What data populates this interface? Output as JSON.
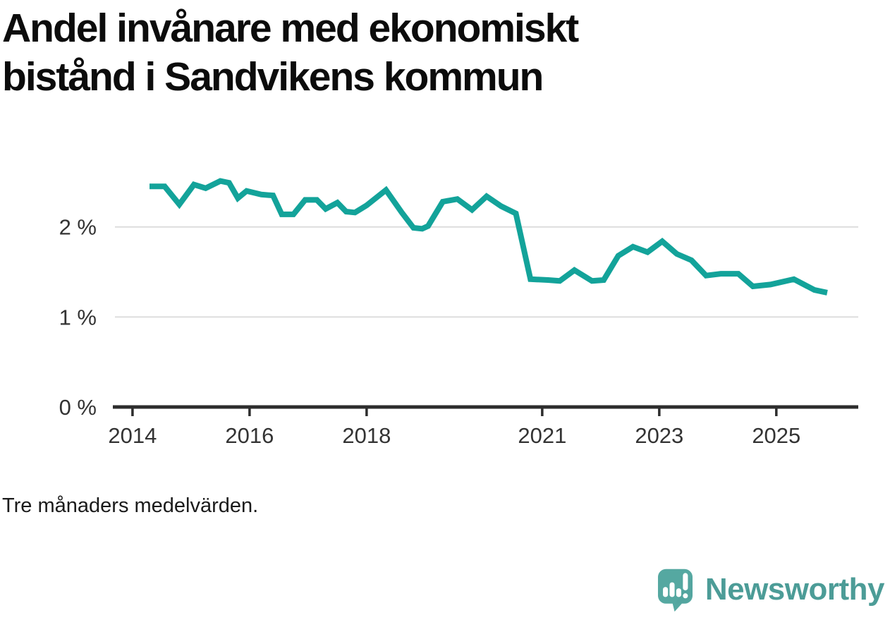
{
  "page": {
    "background": "#ffffff"
  },
  "title": {
    "lines": [
      "Andel invånare med ekonomiskt",
      "bistånd i Sandvikens kommun"
    ]
  },
  "footnote": "Tre månaders medelvärden.",
  "branding": {
    "name": "Newsworthy",
    "icon": "newsworthy-speech-bubble-barchart-icon",
    "icon_color": "#55a8a1",
    "icon_shade_color": "#479690",
    "icon_glyph_color": "#ffffff",
    "text_color": "#4c9c97"
  },
  "chart_data": {
    "type": "line",
    "title": "Andel invånare med ekonomiskt bistånd i Sandvikens kommun",
    "subtitle_note": "Tre månaders medelvärden.",
    "xlabel": "",
    "ylabel": "",
    "unit": "%",
    "grid": true,
    "legend": "none",
    "xlim": [
      2013.7,
      2026.4
    ],
    "ylim": [
      0,
      2.75
    ],
    "x_ticks": [
      {
        "value": 2014,
        "label": "2014"
      },
      {
        "value": 2016,
        "label": "2016"
      },
      {
        "value": 2018,
        "label": "2018"
      },
      {
        "value": 2021,
        "label": "2021"
      },
      {
        "value": 2023,
        "label": "2023"
      },
      {
        "value": 2025,
        "label": "2025"
      }
    ],
    "y_ticks": [
      {
        "value": 0,
        "label": "0 %"
      },
      {
        "value": 1,
        "label": "1 %"
      },
      {
        "value": 2,
        "label": "2 %"
      }
    ],
    "line_color": "#13a39a",
    "grid_color": "#dddddd",
    "axis_color": "#2d2d2d",
    "tick_text_color": "#333333",
    "series": [
      {
        "name": "Andel invånare med ekonomiskt bistånd, Sandvikens kommun",
        "points": [
          [
            2014.29,
            2.45
          ],
          [
            2014.55,
            2.45
          ],
          [
            2014.8,
            2.25
          ],
          [
            2015.05,
            2.47
          ],
          [
            2015.25,
            2.43
          ],
          [
            2015.5,
            2.51
          ],
          [
            2015.65,
            2.49
          ],
          [
            2015.8,
            2.32
          ],
          [
            2015.95,
            2.4
          ],
          [
            2016.2,
            2.36
          ],
          [
            2016.4,
            2.35
          ],
          [
            2016.55,
            2.14
          ],
          [
            2016.75,
            2.14
          ],
          [
            2016.95,
            2.3
          ],
          [
            2017.15,
            2.3
          ],
          [
            2017.3,
            2.2
          ],
          [
            2017.5,
            2.27
          ],
          [
            2017.65,
            2.17
          ],
          [
            2017.8,
            2.16
          ],
          [
            2018.0,
            2.24
          ],
          [
            2018.33,
            2.41
          ],
          [
            2018.6,
            2.16
          ],
          [
            2018.8,
            1.99
          ],
          [
            2018.95,
            1.98
          ],
          [
            2019.05,
            2.01
          ],
          [
            2019.3,
            2.28
          ],
          [
            2019.55,
            2.31
          ],
          [
            2019.8,
            2.19
          ],
          [
            2020.05,
            2.34
          ],
          [
            2020.3,
            2.23
          ],
          [
            2020.55,
            2.15
          ],
          [
            2020.8,
            1.42
          ],
          [
            2021.1,
            1.41
          ],
          [
            2021.3,
            1.4
          ],
          [
            2021.55,
            1.52
          ],
          [
            2021.85,
            1.4
          ],
          [
            2022.05,
            1.41
          ],
          [
            2022.3,
            1.68
          ],
          [
            2022.55,
            1.78
          ],
          [
            2022.8,
            1.72
          ],
          [
            2023.05,
            1.84
          ],
          [
            2023.3,
            1.7
          ],
          [
            2023.55,
            1.63
          ],
          [
            2023.8,
            1.46
          ],
          [
            2024.05,
            1.48
          ],
          [
            2024.35,
            1.48
          ],
          [
            2024.6,
            1.34
          ],
          [
            2024.9,
            1.36
          ],
          [
            2025.3,
            1.42
          ],
          [
            2025.65,
            1.3
          ],
          [
            2025.87,
            1.27
          ]
        ]
      }
    ]
  }
}
